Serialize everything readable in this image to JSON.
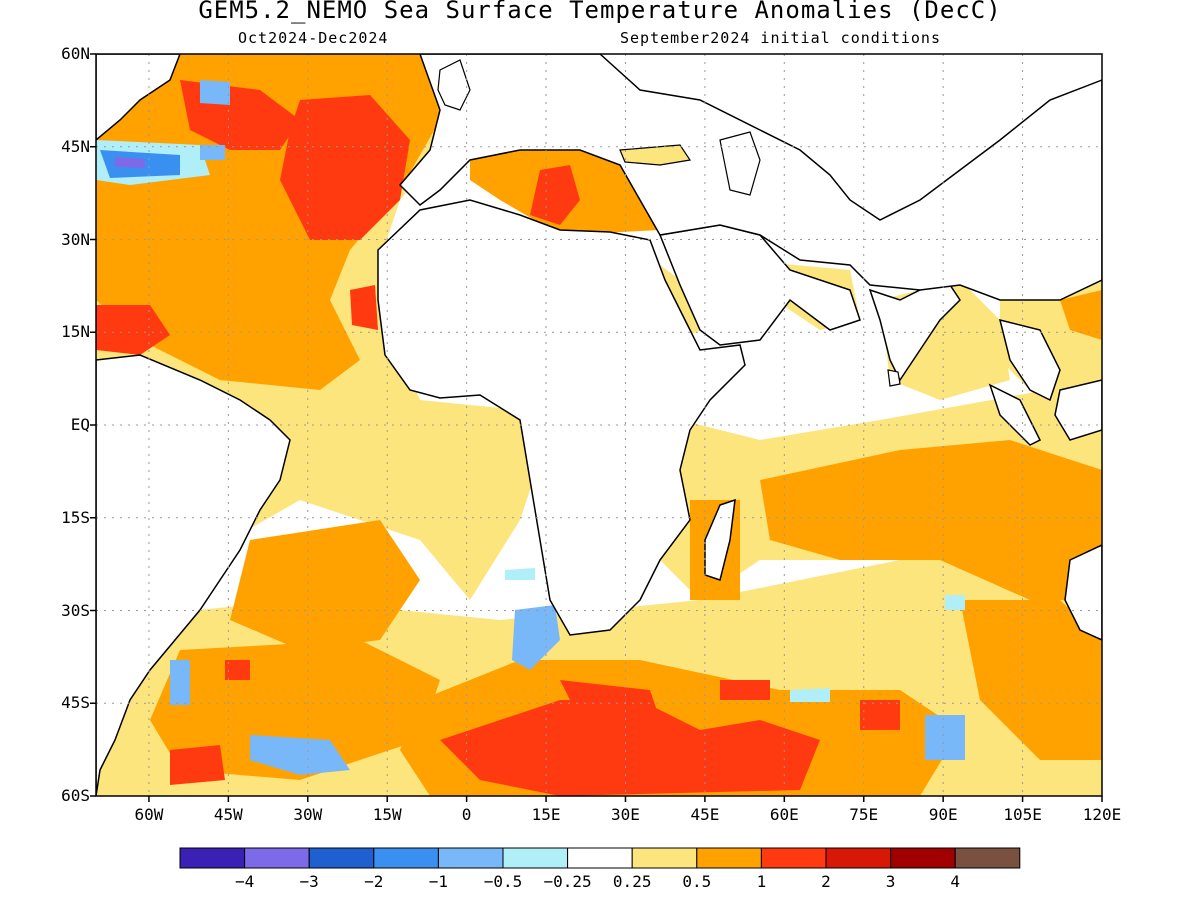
{
  "title": "GEM5.2_NEMO Sea Surface Temperature Anomalies (DecC)",
  "subtitle_left": "Oct2024-Dec2024",
  "subtitle_right": "September2024 initial conditions",
  "map": {
    "lat_labels": [
      "60N",
      "45N",
      "30N",
      "15N",
      "EQ",
      "15S",
      "30S",
      "45S",
      "60S"
    ],
    "lon_labels": [
      "60W",
      "45W",
      "30W",
      "15W",
      "0",
      "15E",
      "30E",
      "45E",
      "60E",
      "75E",
      "90E",
      "105E",
      "120E"
    ],
    "extent": {
      "lon": [
        -70,
        120
      ],
      "lat": [
        -60,
        60
      ]
    },
    "grid": "dotted",
    "variable": "sea surface temperature anomaly"
  },
  "colorbar": {
    "labels": [
      "-4",
      "-3",
      "-2",
      "-1",
      "-0.5",
      "-0.25",
      "0.25",
      "0.5",
      "1",
      "2",
      "3",
      "4"
    ],
    "colors": [
      "#3a20b5",
      "#7d6ae8",
      "#1e60cf",
      "#3a90f0",
      "#78b8f8",
      "#b0eef8",
      "#ffffff",
      "#fde57d",
      "#ffa200",
      "#ff3a10",
      "#d81806",
      "#a00000",
      "#7a5040"
    ]
  }
}
